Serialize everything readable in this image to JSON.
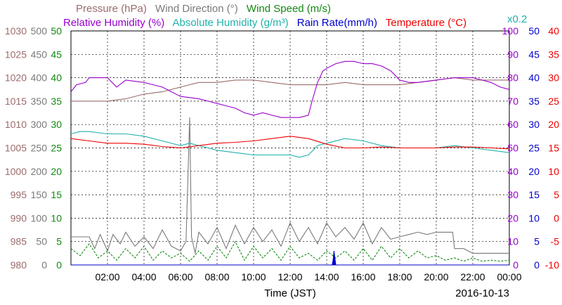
{
  "chart_data": {
    "type": "line",
    "date": "2016-10-13",
    "xlabel": "Time (JST)",
    "x_ticks": [
      "02:00",
      "04:00",
      "06:00",
      "08:00",
      "10:00",
      "12:00",
      "14:00",
      "16:00",
      "18:00",
      "20:00",
      "22:00",
      "00:00"
    ],
    "xlim_hours": [
      0,
      24
    ],
    "grid": true,
    "legend": {
      "row1": [
        {
          "key": "pressure",
          "text": "Pressure (hPa)",
          "color": "#9c6b6b"
        },
        {
          "key": "wind_direction",
          "text": "Wind Direction (°)",
          "color": "#7a7a7a"
        },
        {
          "key": "wind_speed",
          "text": "Wind Speed (m/s)",
          "color": "#118811"
        }
      ],
      "row2": [
        {
          "key": "relative_humidity",
          "text": "Relative Humidity (%)",
          "color": "#9900cc"
        },
        {
          "key": "absolute_humidity",
          "text": "Absolute Humidity (g/m³)",
          "color": "#20b2aa"
        },
        {
          "key": "rain_rate",
          "text": "Rain Rate(mm/h)",
          "color": "#0000cc"
        },
        {
          "key": "temperature",
          "text": "Temperature (°C)",
          "color": "#ee0000"
        }
      ],
      "scale_note": {
        "text": "x0.2",
        "color": "#20b2aa"
      }
    },
    "axes": {
      "pressure": {
        "color": "#9c6b6b",
        "ticks": [
          "1030",
          "1025",
          "1020",
          "1015",
          "1010",
          "1005",
          "1000",
          "995",
          "990",
          "985",
          "980"
        ],
        "min": 980,
        "max": 1030
      },
      "wind_direction": {
        "color": "#7a7a7a",
        "ticks": [
          "500",
          "450",
          "400",
          "350",
          "300",
          "250",
          "200",
          "150",
          "100",
          "50",
          "0"
        ],
        "min": 0,
        "max": 500
      },
      "wind_speed": {
        "color": "#118811",
        "ticks": [
          "50",
          "45",
          "40",
          "35",
          "30",
          "25",
          "20",
          "15",
          "10",
          "5",
          "0"
        ],
        "min": 0,
        "max": 50
      },
      "relative_humidity": {
        "color": "#9900cc",
        "ticks": [
          "100",
          "90",
          "80",
          "70",
          "60",
          "50",
          "40",
          "30",
          "20",
          "10",
          "0"
        ],
        "min": 0,
        "max": 100
      },
      "rain_rate": {
        "color": "#0000cc",
        "ticks": [
          "50",
          "45",
          "40",
          "35",
          "30",
          "25",
          "20",
          "15",
          "10",
          "5",
          "0"
        ],
        "min": 0,
        "max": 50
      },
      "temperature": {
        "color": "#ee0000",
        "ticks": [
          "40",
          "35",
          "30",
          "25",
          "20",
          "15",
          "10",
          "5",
          "0",
          "-5",
          "-10"
        ],
        "min": -10,
        "max": 40
      }
    },
    "series": [
      {
        "name": "Pressure (hPa)",
        "axis": "pressure",
        "color": "#9c6b6b",
        "x": [
          0,
          1,
          2,
          3,
          4,
          5,
          6,
          7,
          8,
          9,
          10,
          11,
          12,
          13,
          14,
          15,
          16,
          17,
          18,
          19,
          20,
          21,
          22,
          23,
          24
        ],
        "y": [
          1015.0,
          1015.0,
          1015.0,
          1015.5,
          1016.5,
          1017.0,
          1018.0,
          1019.0,
          1019.0,
          1019.5,
          1019.5,
          1019.0,
          1018.5,
          1018.5,
          1018.5,
          1019.0,
          1018.5,
          1018.5,
          1018.5,
          1019.0,
          1019.5,
          1020.0,
          1019.5,
          1019.5,
          1019.5
        ]
      },
      {
        "name": "Wind Direction (°)",
        "axis": "wind_direction",
        "color": "#7a7a7a",
        "x": [
          0,
          0.5,
          1,
          1.3,
          1.6,
          2,
          2.3,
          2.7,
          3,
          3.5,
          4,
          4.5,
          5,
          5.5,
          6,
          6.3,
          6.5,
          6.6,
          6.8,
          7,
          7.5,
          8,
          8.5,
          9,
          9.5,
          10,
          10.5,
          11,
          11.5,
          12,
          12.5,
          13,
          13.5,
          14,
          14.5,
          15,
          15.5,
          16,
          16.5,
          17,
          17.5,
          18,
          18.5,
          19,
          19.5,
          20,
          20.5,
          20.9,
          21,
          21.5,
          22,
          22.5,
          23,
          23.5,
          24
        ],
        "y": [
          60,
          60,
          60,
          35,
          65,
          30,
          65,
          45,
          70,
          40,
          60,
          35,
          75,
          40,
          30,
          50,
          315,
          60,
          25,
          70,
          45,
          80,
          35,
          85,
          45,
          80,
          50,
          75,
          40,
          90,
          50,
          80,
          45,
          90,
          60,
          80,
          55,
          90,
          45,
          80,
          55,
          60,
          65,
          70,
          65,
          70,
          70,
          70,
          35,
          35,
          25,
          25,
          25,
          25,
          25
        ]
      },
      {
        "name": "Wind Speed (m/s)",
        "axis": "wind_speed",
        "color": "#118811",
        "x": [
          0,
          0.5,
          1,
          1.5,
          2,
          2.5,
          3,
          3.5,
          4,
          4.5,
          5,
          5.5,
          6,
          6.5,
          7,
          7.5,
          8,
          8.5,
          9,
          9.5,
          10,
          10.5,
          11,
          11.5,
          12,
          12.5,
          13,
          13.5,
          14,
          14.5,
          15,
          15.5,
          16,
          16.5,
          17,
          17.5,
          18,
          18.5,
          19,
          19.5,
          20,
          20.5,
          21,
          21.5,
          22,
          22.5,
          23,
          23.5,
          24
        ],
        "y": [
          3.5,
          2.0,
          4.5,
          1.5,
          3.0,
          1.0,
          3.5,
          1.5,
          4.0,
          1.0,
          3.0,
          1.5,
          2.5,
          0.8,
          3.0,
          1.0,
          4.0,
          1.5,
          5.0,
          1.0,
          4.0,
          1.5,
          3.5,
          1.0,
          4.0,
          1.5,
          2.5,
          1.0,
          3.0,
          1.5,
          3.0,
          1.0,
          3.5,
          1.0,
          4.0,
          1.5,
          3.5,
          1.5,
          3.0,
          1.5,
          2.0,
          1.0,
          1.5,
          0.8,
          1.5,
          0.8,
          1.0,
          0.8,
          1.0
        ]
      },
      {
        "name": "Relative Humidity (%)",
        "axis": "relative_humidity",
        "color": "#9900cc",
        "x": [
          0,
          0.3,
          0.8,
          1,
          2,
          2.5,
          3,
          4,
          4.5,
          5,
          5.5,
          6,
          7,
          7.5,
          8,
          8.5,
          9,
          9.5,
          10,
          10.5,
          11,
          11.5,
          12,
          12.5,
          13,
          13.2,
          13.5,
          13.8,
          14,
          14.5,
          15,
          15.5,
          16,
          16.5,
          17,
          17.5,
          18,
          18.5,
          19,
          20,
          21,
          21.5,
          22,
          22.5,
          23,
          23.5,
          24
        ],
        "y": [
          74,
          77,
          78,
          80,
          80,
          76,
          79,
          78,
          77,
          76,
          74,
          72,
          71,
          70,
          69,
          68,
          67,
          65,
          64,
          65,
          64,
          63,
          63,
          63,
          64,
          70,
          78,
          83,
          84,
          86,
          87,
          87,
          86,
          86,
          85,
          83,
          79,
          78,
          78,
          79,
          80,
          80,
          80,
          79,
          78,
          76,
          75
        ]
      },
      {
        "name": "Absolute Humidity (g/m³)",
        "axis": "absolute_humidity",
        "color": "#20b2aa",
        "scale_factor": 0.2,
        "x": [
          0,
          0.5,
          1,
          2,
          3,
          4,
          5,
          6,
          6.5,
          7,
          7.5,
          8,
          9,
          10,
          11,
          12,
          12.5,
          13,
          13.5,
          14,
          15,
          16,
          17,
          18,
          19,
          20,
          21,
          22,
          23,
          24
        ],
        "y": [
          56,
          57,
          57,
          56,
          56,
          55,
          53,
          51,
          52,
          51,
          50,
          49,
          48,
          47,
          47,
          47,
          46,
          47,
          51,
          52,
          54,
          53,
          51,
          50,
          50,
          50,
          51,
          50,
          49,
          48
        ]
      },
      {
        "name": "Rain Rate(mm/h)",
        "axis": "rain_rate",
        "color": "#0000cc",
        "x": [
          0,
          14.3,
          14.35,
          14.4,
          14.45,
          14.5,
          24
        ],
        "y": [
          0,
          0,
          1,
          3,
          1.5,
          0,
          0
        ]
      },
      {
        "name": "Temperature (°C)",
        "axis": "temperature",
        "color": "#ee0000",
        "x": [
          0,
          1,
          2,
          3,
          4,
          5,
          6,
          7,
          8,
          9,
          10,
          11,
          12,
          13,
          14,
          15,
          16,
          17,
          18,
          19,
          20,
          21,
          22,
          23,
          24
        ],
        "y": [
          17.0,
          16.5,
          16.0,
          16.0,
          15.8,
          15.3,
          15.0,
          15.5,
          16.0,
          16.2,
          16.5,
          17.0,
          17.5,
          17.0,
          15.8,
          15.0,
          15.0,
          15.2,
          15.0,
          15.0,
          15.0,
          15.2,
          15.2,
          15.0,
          14.8
        ]
      }
    ]
  }
}
